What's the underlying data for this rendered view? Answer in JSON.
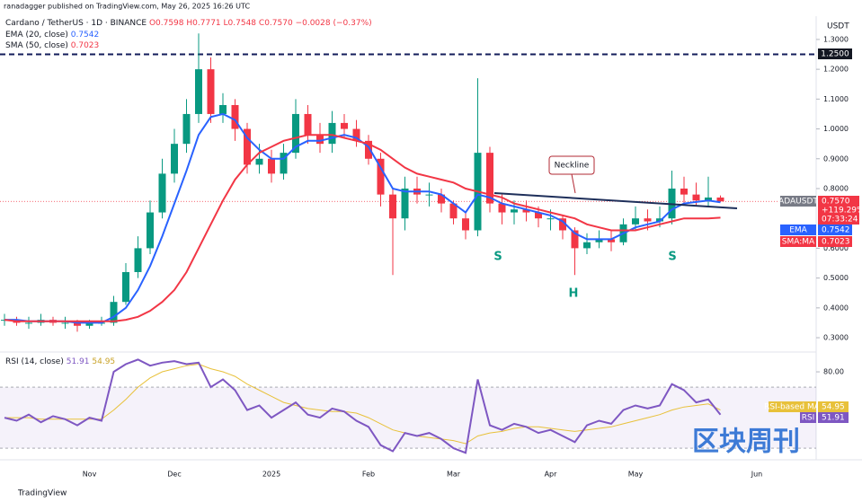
{
  "header": {
    "author": "ranadagger published on TradingView.com, May 26, 2025 16:26 UTC",
    "footer": "TradingView",
    "watermark": "区块周刊"
  },
  "chart_data": {
    "type": "candlestick",
    "symbol": "Cardano / TetherUS · 1D · BINANCE",
    "ohlc": [
      "O0.7598",
      "H0.7771",
      "L0.7548",
      "C0.7570",
      "−0.0028 (−0.37%)"
    ],
    "legend": [
      {
        "label": "EMA (20, close)",
        "value": "0.7542"
      },
      {
        "label": "SMA (50, close)",
        "value": "0.7023"
      }
    ],
    "axis_unit": "USDT",
    "categories": [
      null,
      null,
      null,
      null,
      null,
      null,
      null,
      "Nov",
      null,
      null,
      null,
      null,
      null,
      null,
      "Dec",
      null,
      null,
      null,
      null,
      null,
      null,
      null,
      "2025",
      null,
      null,
      null,
      null,
      null,
      null,
      null,
      "Feb",
      null,
      null,
      null,
      null,
      null,
      null,
      "Mar",
      null,
      null,
      null,
      null,
      null,
      null,
      null,
      "Apr",
      null,
      null,
      null,
      null,
      null,
      null,
      "May",
      null,
      null,
      null,
      null,
      null,
      null,
      null,
      null,
      null,
      "Jun"
    ],
    "open": [
      0.36,
      0.36,
      0.35,
      0.35,
      0.36,
      0.35,
      0.35,
      0.34,
      0.35,
      0.35,
      0.42,
      0.52,
      0.6,
      0.72,
      0.85,
      0.95,
      1.05,
      1.2,
      1.05,
      1.08,
      1.0,
      0.88,
      0.9,
      0.85,
      0.92,
      1.05,
      0.98,
      0.95,
      1.02,
      1.0,
      0.96,
      0.9,
      0.78,
      0.7,
      0.8,
      0.78,
      0.78,
      0.75,
      0.7,
      0.66,
      0.92,
      0.75,
      0.72,
      0.73,
      0.72,
      0.7,
      0.7,
      0.66,
      0.6,
      0.62,
      0.63,
      0.62,
      0.68,
      0.7,
      0.69,
      0.7,
      0.8,
      0.78,
      0.76,
      0.77,
      null,
      null,
      null
    ],
    "high": [
      0.38,
      0.37,
      0.37,
      0.38,
      0.37,
      0.37,
      0.36,
      0.36,
      0.37,
      0.44,
      0.55,
      0.64,
      0.76,
      0.9,
      1.0,
      1.1,
      1.32,
      1.24,
      1.12,
      1.1,
      1.02,
      0.95,
      0.93,
      0.95,
      1.1,
      1.08,
      1.02,
      1.06,
      1.05,
      1.03,
      0.98,
      0.92,
      0.8,
      0.84,
      0.84,
      0.82,
      0.8,
      0.76,
      0.72,
      1.17,
      0.94,
      0.78,
      0.76,
      0.76,
      0.74,
      0.73,
      0.71,
      0.67,
      0.65,
      0.66,
      0.66,
      0.7,
      0.74,
      0.73,
      0.74,
      0.86,
      0.84,
      0.82,
      0.84,
      0.777,
      null,
      null,
      null
    ],
    "low": [
      0.34,
      0.34,
      0.33,
      0.34,
      0.34,
      0.33,
      0.32,
      0.33,
      0.34,
      0.34,
      0.41,
      0.5,
      0.58,
      0.7,
      0.82,
      0.92,
      1.02,
      1.02,
      1.02,
      0.96,
      0.85,
      0.85,
      0.82,
      0.83,
      0.9,
      0.95,
      0.92,
      0.92,
      0.97,
      0.94,
      0.88,
      0.74,
      0.51,
      0.66,
      0.75,
      0.74,
      0.72,
      0.68,
      0.63,
      0.64,
      0.72,
      0.68,
      0.68,
      0.69,
      0.67,
      0.66,
      0.63,
      0.51,
      0.58,
      0.6,
      0.59,
      0.61,
      0.66,
      0.66,
      0.67,
      0.68,
      0.75,
      0.74,
      0.74,
      0.755,
      null,
      null,
      null
    ],
    "close": [
      0.36,
      0.35,
      0.35,
      0.36,
      0.35,
      0.35,
      0.34,
      0.35,
      0.35,
      0.42,
      0.52,
      0.6,
      0.72,
      0.85,
      0.95,
      1.05,
      1.2,
      1.05,
      1.08,
      1.0,
      0.88,
      0.9,
      0.85,
      0.92,
      1.05,
      0.98,
      0.95,
      1.02,
      1.0,
      0.96,
      0.9,
      0.78,
      0.7,
      0.8,
      0.78,
      0.78,
      0.75,
      0.7,
      0.66,
      0.92,
      0.75,
      0.72,
      0.73,
      0.72,
      0.7,
      0.7,
      0.66,
      0.6,
      0.62,
      0.63,
      0.62,
      0.68,
      0.7,
      0.69,
      0.7,
      0.8,
      0.78,
      0.76,
      0.77,
      0.757,
      null,
      null,
      null
    ],
    "up_color": "#089981",
    "down_color": "#f23645",
    "overlays": [
      {
        "name": "EMA",
        "color": "#2962ff",
        "values": [
          0.36,
          0.36,
          0.355,
          0.355,
          0.355,
          0.355,
          0.35,
          0.35,
          0.35,
          0.37,
          0.4,
          0.46,
          0.54,
          0.64,
          0.75,
          0.86,
          0.98,
          1.04,
          1.05,
          1.03,
          0.97,
          0.93,
          0.9,
          0.9,
          0.94,
          0.96,
          0.96,
          0.97,
          0.98,
          0.97,
          0.94,
          0.87,
          0.8,
          0.79,
          0.79,
          0.79,
          0.78,
          0.75,
          0.72,
          0.78,
          0.77,
          0.75,
          0.74,
          0.73,
          0.72,
          0.71,
          0.69,
          0.65,
          0.63,
          0.63,
          0.63,
          0.65,
          0.67,
          0.68,
          0.69,
          0.73,
          0.75,
          0.755,
          0.76,
          0.7542,
          null,
          null,
          null
        ]
      },
      {
        "name": "SMA:MA",
        "color": "#f23645",
        "values": [
          0.36,
          0.355,
          0.355,
          0.355,
          0.355,
          0.355,
          0.355,
          0.355,
          0.355,
          0.355,
          0.36,
          0.37,
          0.39,
          0.42,
          0.46,
          0.52,
          0.6,
          0.68,
          0.76,
          0.83,
          0.88,
          0.92,
          0.94,
          0.96,
          0.97,
          0.98,
          0.98,
          0.98,
          0.97,
          0.96,
          0.95,
          0.93,
          0.9,
          0.87,
          0.85,
          0.84,
          0.83,
          0.82,
          0.8,
          0.79,
          0.78,
          0.77,
          0.75,
          0.74,
          0.73,
          0.72,
          0.71,
          0.7,
          0.68,
          0.67,
          0.66,
          0.66,
          0.66,
          0.67,
          0.68,
          0.69,
          0.7,
          0.7,
          0.7,
          0.7023,
          null,
          null,
          null
        ]
      }
    ],
    "last_price": {
      "value": 0.757,
      "tags": [
        "ADAUSDT",
        "0.7570",
        "+119.29%",
        "07:33:24"
      ]
    },
    "overlay_tags": [
      "0.7542",
      "0.7023"
    ],
    "level": {
      "value": 1.25,
      "label": "1.2500"
    },
    "annotations": {
      "neckline": "Neckline",
      "left_shoulder": "S",
      "head": "H",
      "right_shoulder": "S"
    },
    "ylim": [
      0.258,
      1.372
    ],
    "yticks": [
      {
        "value": 1.3,
        "label": "1.3000"
      },
      {
        "value": 1.2,
        "label": "1.2000"
      },
      {
        "value": 1.1,
        "label": "1.1000"
      },
      {
        "value": 1.0,
        "label": "1.0000"
      },
      {
        "value": 0.9,
        "label": "0.9000"
      },
      {
        "value": 0.8,
        "label": "0.8000"
      },
      {
        "value": 0.6,
        "label": "0.6000"
      },
      {
        "value": 0.5,
        "label": "0.5000"
      },
      {
        "value": 0.4,
        "label": "0.4000"
      },
      {
        "value": 0.3,
        "label": "0.3000"
      }
    ],
    "rsi": {
      "legend": "RSI (14, close)",
      "legend_values": [
        "51.91",
        "54.95"
      ],
      "ylim": [
        22.4,
        91.2
      ],
      "band": [
        30,
        70
      ],
      "yticks": [
        {
          "value": 80,
          "label": "80.00"
        }
      ],
      "series": [
        {
          "name": "RSI",
          "color": "#7e57c2",
          "tag": "51.91",
          "values": [
            50,
            48,
            52,
            47,
            51,
            49,
            45,
            50,
            48,
            80,
            85,
            88,
            84,
            86,
            87,
            85,
            86,
            70,
            75,
            68,
            55,
            58,
            50,
            55,
            60,
            52,
            50,
            56,
            54,
            48,
            44,
            32,
            28,
            40,
            38,
            40,
            36,
            30,
            27,
            75,
            45,
            42,
            46,
            44,
            40,
            42,
            38,
            34,
            45,
            48,
            46,
            55,
            58,
            56,
            58,
            72,
            68,
            60,
            62,
            51.91,
            null,
            null,
            null
          ]
        },
        {
          "name": "RSI-based MA",
          "color": "#e8c13a",
          "tag": "54.95",
          "values": [
            50,
            50,
            50,
            49,
            49,
            49,
            49,
            49,
            49,
            55,
            62,
            70,
            76,
            80,
            82,
            84,
            85,
            82,
            80,
            77,
            72,
            68,
            64,
            60,
            58,
            56,
            55,
            54,
            54,
            53,
            50,
            46,
            42,
            40,
            38,
            37,
            36,
            35,
            33,
            38,
            40,
            41,
            43,
            44,
            44,
            43,
            42,
            41,
            42,
            43,
            44,
            46,
            48,
            50,
            52,
            55,
            57,
            58,
            59,
            54.95,
            null,
            null,
            null
          ]
        }
      ]
    }
  }
}
